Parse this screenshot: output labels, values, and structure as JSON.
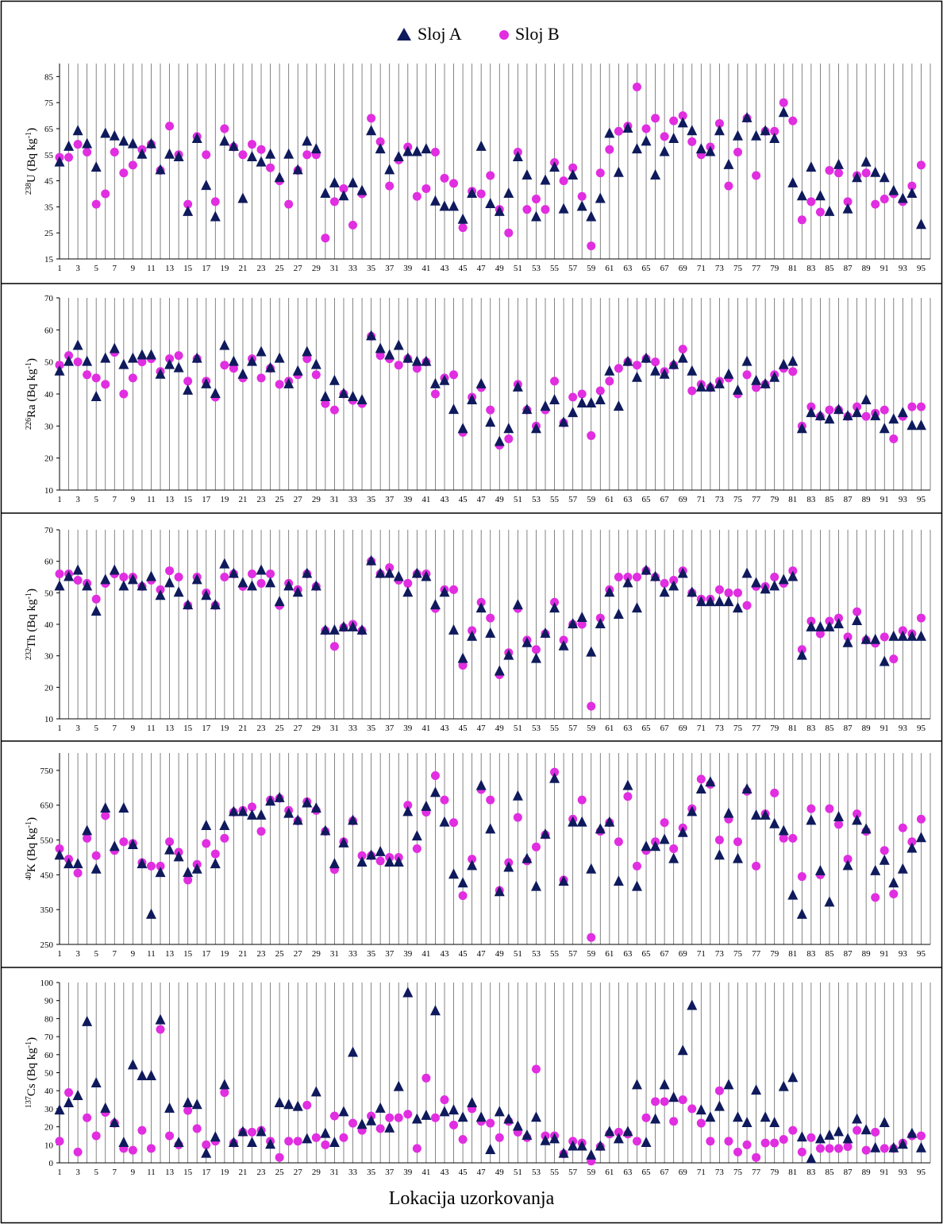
{
  "figure": {
    "xlabel": "Lokacija uzorkovanja",
    "legend": {
      "placement": "top-center",
      "items": [
        "Sloj A",
        "Sloj B"
      ]
    },
    "colors": {
      "series_a": "#0f1a5c",
      "series_b": "#e02ee0",
      "grid": "#666666",
      "frame": "#000000"
    }
  },
  "chart_data": [
    {
      "type": "scatter",
      "ylabel": {
        "sup": "238",
        "nuclide": "U",
        "unit": "(Bq kg",
        "unit_sup": "-1",
        "close": ")"
      },
      "ylim": [
        15,
        90
      ],
      "yticks": [
        15,
        25,
        35,
        45,
        55,
        65,
        75,
        85
      ],
      "x": {
        "min": 1,
        "max": 95,
        "tick_step": 2
      },
      "grid": "vertical",
      "series": [
        {
          "name": "Sloj A",
          "marker": "triangle",
          "values": [
            52,
            58,
            64,
            59,
            50,
            63,
            62,
            60,
            59,
            55,
            59,
            49,
            55,
            54,
            33,
            61,
            43,
            31,
            60,
            58,
            38,
            54,
            52,
            55,
            46,
            55,
            49,
            60,
            57,
            40,
            44,
            39,
            44,
            41,
            64,
            57,
            49,
            54,
            56,
            56,
            57,
            37,
            35,
            35,
            30,
            40,
            58,
            36,
            33,
            40,
            54,
            47,
            31,
            45,
            50,
            34,
            47,
            35,
            31,
            38,
            63,
            48,
            65,
            57,
            60,
            47,
            56,
            61,
            67,
            64,
            57,
            56,
            64,
            51,
            62,
            69,
            62,
            64,
            61,
            71,
            44,
            39,
            50,
            39,
            33,
            51,
            34,
            46,
            52,
            48,
            46,
            41,
            38,
            40,
            28
          ]
        },
        {
          "name": "Sloj B",
          "marker": "circle",
          "values": [
            54,
            54,
            59,
            56,
            36,
            40,
            56,
            48,
            51,
            57,
            59,
            49,
            66,
            55,
            36,
            62,
            55,
            37,
            65,
            58,
            55,
            59,
            57,
            50,
            45,
            36,
            49,
            55,
            55,
            23,
            37,
            42,
            28,
            40,
            69,
            60,
            43,
            53,
            58,
            39,
            42,
            56,
            46,
            44,
            27,
            41,
            40,
            47,
            34,
            25,
            56,
            34,
            38,
            34,
            52,
            45,
            50,
            39,
            20,
            48,
            57,
            64,
            66,
            81,
            65,
            69,
            62,
            68,
            70,
            60,
            55,
            58,
            67,
            43,
            56,
            69,
            47,
            64,
            64,
            75,
            68,
            30,
            37,
            33,
            49,
            48,
            37,
            47,
            48,
            36,
            38,
            40,
            37,
            43,
            51
          ]
        }
      ]
    },
    {
      "type": "scatter",
      "ylabel": {
        "sup": "226",
        "nuclide": "Ra",
        "unit": "(Bq kg",
        "unit_sup": "-1",
        "close": ")"
      },
      "ylim": [
        10,
        70
      ],
      "yticks": [
        10,
        20,
        30,
        40,
        50,
        60,
        70
      ],
      "x": {
        "min": 1,
        "max": 95,
        "tick_step": 2
      },
      "grid": "vertical",
      "series": [
        {
          "name": "Sloj A",
          "marker": "triangle",
          "values": [
            47,
            50,
            55,
            50,
            39,
            51,
            54,
            49,
            51,
            52,
            52,
            46,
            49,
            48,
            41,
            51,
            43,
            40,
            55,
            50,
            46,
            50,
            53,
            48,
            51,
            43,
            47,
            53,
            49,
            39,
            44,
            40,
            39,
            38,
            58,
            54,
            52,
            55,
            51,
            50,
            50,
            43,
            44,
            35,
            29,
            38,
            43,
            31,
            25,
            29,
            42,
            35,
            29,
            36,
            38,
            31,
            34,
            37,
            37,
            38,
            47,
            36,
            50,
            45,
            51,
            47,
            46,
            49,
            51,
            47,
            42,
            42,
            43,
            46,
            41,
            50,
            44,
            43,
            45,
            49,
            50,
            29,
            34,
            33,
            32,
            35,
            33,
            34,
            38,
            33,
            29,
            32,
            34,
            30,
            30
          ]
        },
        {
          "name": "Sloj B",
          "marker": "circle",
          "values": [
            49,
            52,
            50,
            46,
            45,
            43,
            53,
            40,
            45,
            50,
            51,
            47,
            51,
            52,
            44,
            51,
            44,
            39,
            49,
            48,
            45,
            51,
            45,
            48,
            43,
            44,
            46,
            51,
            46,
            37,
            35,
            40,
            38,
            37,
            58,
            52,
            51,
            49,
            51,
            48,
            50,
            40,
            45,
            46,
            28,
            39,
            42,
            35,
            24,
            26,
            43,
            35,
            30,
            35,
            44,
            31,
            39,
            40,
            27,
            41,
            44,
            48,
            50,
            49,
            51,
            50,
            47,
            49,
            54,
            41,
            43,
            42,
            44,
            45,
            40,
            46,
            42,
            43,
            46,
            48,
            47,
            30,
            36,
            33,
            35,
            35,
            33,
            36,
            33,
            34,
            35,
            26,
            33,
            36,
            36
          ]
        }
      ]
    },
    {
      "type": "scatter",
      "ylabel": {
        "sup": "232",
        "nuclide": "Th",
        "unit": "(Bq kg",
        "unit_sup": "-1",
        "close": ")"
      },
      "ylim": [
        10,
        70
      ],
      "yticks": [
        10,
        20,
        30,
        40,
        50,
        60,
        70
      ],
      "x": {
        "min": 1,
        "max": 95,
        "tick_step": 2
      },
      "grid": "vertical",
      "series": [
        {
          "name": "Sloj A",
          "marker": "triangle",
          "values": [
            52,
            55,
            57,
            52,
            44,
            54,
            57,
            52,
            54,
            52,
            55,
            49,
            53,
            50,
            46,
            54,
            49,
            46,
            59,
            56,
            53,
            52,
            57,
            53,
            47,
            52,
            50,
            56,
            52,
            38,
            38,
            39,
            39,
            38,
            60,
            56,
            56,
            55,
            50,
            56,
            55,
            46,
            50,
            38,
            29,
            36,
            45,
            37,
            25,
            30,
            46,
            34,
            29,
            37,
            45,
            33,
            40,
            42,
            31,
            40,
            50,
            43,
            53,
            45,
            57,
            55,
            50,
            52,
            56,
            50,
            47,
            47,
            47,
            47,
            45,
            56,
            53,
            51,
            52,
            54,
            55,
            30,
            39,
            39,
            39,
            40,
            34,
            41,
            35,
            35,
            28,
            36,
            36,
            36,
            36
          ]
        },
        {
          "name": "Sloj B",
          "marker": "circle",
          "values": [
            56,
            56,
            54,
            53,
            48,
            53,
            56,
            55,
            55,
            52,
            54,
            51,
            57,
            55,
            46,
            55,
            50,
            46,
            55,
            56,
            52,
            56,
            53,
            56,
            46,
            53,
            51,
            56,
            52,
            38,
            33,
            39,
            40,
            38,
            60,
            56,
            58,
            54,
            53,
            56,
            56,
            45,
            51,
            51,
            27,
            38,
            47,
            42,
            24,
            31,
            45,
            35,
            32,
            37,
            47,
            35,
            40,
            40,
            14,
            42,
            51,
            55,
            55,
            55,
            57,
            55,
            53,
            54,
            57,
            50,
            48,
            48,
            51,
            50,
            50,
            46,
            52,
            52,
            55,
            53,
            57,
            32,
            41,
            37,
            41,
            42,
            36,
            44,
            35,
            34,
            36,
            29,
            38,
            37,
            42
          ]
        }
      ]
    },
    {
      "type": "scatter",
      "ylabel": {
        "sup": "40",
        "nuclide": "K",
        "unit": "(Bq kg",
        "unit_sup": "-1",
        "close": ")"
      },
      "ylim": [
        250,
        800
      ],
      "yticks": [
        250,
        350,
        450,
        550,
        650,
        750
      ],
      "x": {
        "min": 1,
        "max": 95,
        "tick_step": 2
      },
      "grid": "vertical",
      "series": [
        {
          "name": "Sloj A",
          "marker": "triangle",
          "values": [
            505,
            480,
            480,
            575,
            465,
            640,
            530,
            640,
            535,
            480,
            335,
            455,
            520,
            500,
            455,
            465,
            590,
            480,
            590,
            630,
            630,
            620,
            620,
            660,
            670,
            625,
            605,
            655,
            640,
            575,
            480,
            540,
            605,
            485,
            505,
            515,
            485,
            485,
            630,
            560,
            645,
            685,
            600,
            450,
            425,
            475,
            705,
            580,
            400,
            470,
            675,
            495,
            415,
            565,
            725,
            430,
            600,
            600,
            465,
            580,
            600,
            430,
            705,
            415,
            530,
            530,
            550,
            495,
            570,
            630,
            695,
            715,
            505,
            625,
            495,
            695,
            620,
            620,
            595,
            575,
            390,
            335,
            605,
            460,
            370,
            615,
            475,
            605,
            580,
            460,
            490,
            425,
            465,
            525,
            555
          ]
        },
        {
          "name": "Sloj B",
          "marker": "circle",
          "values": [
            525,
            495,
            455,
            555,
            505,
            620,
            520,
            545,
            540,
            485,
            475,
            475,
            545,
            515,
            435,
            480,
            540,
            510,
            555,
            630,
            635,
            645,
            575,
            665,
            670,
            635,
            605,
            660,
            635,
            575,
            465,
            545,
            605,
            505,
            505,
            490,
            500,
            500,
            650,
            525,
            630,
            735,
            665,
            600,
            390,
            495,
            695,
            665,
            405,
            485,
            615,
            490,
            530,
            565,
            745,
            435,
            610,
            665,
            270,
            575,
            600,
            545,
            675,
            475,
            520,
            545,
            600,
            525,
            585,
            640,
            725,
            710,
            550,
            610,
            545,
            690,
            475,
            625,
            685,
            555,
            555,
            445,
            640,
            450,
            640,
            595,
            495,
            625,
            575,
            385,
            520,
            395,
            585,
            545,
            610
          ]
        }
      ]
    },
    {
      "type": "scatter",
      "ylabel": {
        "sup": "137",
        "nuclide": "Cs",
        "unit": "(Bq kg",
        "unit_sup": "-1",
        "close": ")"
      },
      "ylim": [
        0,
        100
      ],
      "yticks": [
        0,
        10,
        20,
        30,
        40,
        50,
        60,
        70,
        80,
        90,
        100
      ],
      "x": {
        "min": 1,
        "max": 95,
        "tick_step": 2
      },
      "grid": "vertical",
      "series": [
        {
          "name": "Sloj A",
          "marker": "triangle",
          "values": [
            29,
            33,
            37,
            78,
            44,
            30,
            22,
            11,
            54,
            48,
            48,
            79,
            30,
            11,
            33,
            32,
            5,
            14,
            43,
            11,
            17,
            11,
            17,
            10,
            33,
            32,
            31,
            13,
            39,
            16,
            11,
            28,
            61,
            21,
            23,
            30,
            19,
            42,
            94,
            24,
            26,
            84,
            28,
            29,
            25,
            33,
            25,
            7,
            28,
            24,
            20,
            15,
            25,
            12,
            13,
            5,
            9,
            9,
            4,
            9,
            17,
            13,
            17,
            43,
            11,
            24,
            43,
            36,
            62,
            87,
            29,
            25,
            31,
            43,
            25,
            22,
            40,
            25,
            22,
            42,
            47,
            14,
            2,
            13,
            15,
            17,
            13,
            24,
            18,
            8,
            22,
            8,
            10,
            16,
            8
          ]
        },
        {
          "name": "Sloj B",
          "marker": "circle",
          "values": [
            12,
            39,
            6,
            25,
            15,
            28,
            22,
            8,
            7,
            18,
            8,
            74,
            15,
            10,
            29,
            19,
            10,
            12,
            39,
            11,
            17,
            17,
            18,
            12,
            3,
            12,
            12,
            32,
            14,
            10,
            26,
            14,
            22,
            18,
            26,
            19,
            25,
            25,
            27,
            8,
            47,
            25,
            35,
            21,
            13,
            30,
            23,
            22,
            14,
            23,
            17,
            14,
            52,
            15,
            15,
            5,
            12,
            11,
            1,
            9,
            16,
            17,
            16,
            12,
            25,
            34,
            34,
            23,
            35,
            30,
            22,
            12,
            40,
            12,
            6,
            10,
            3,
            11,
            11,
            13,
            18,
            6,
            14,
            8,
            8,
            8,
            9,
            18,
            7,
            17,
            8,
            8,
            11,
            15,
            15
          ]
        }
      ]
    }
  ]
}
